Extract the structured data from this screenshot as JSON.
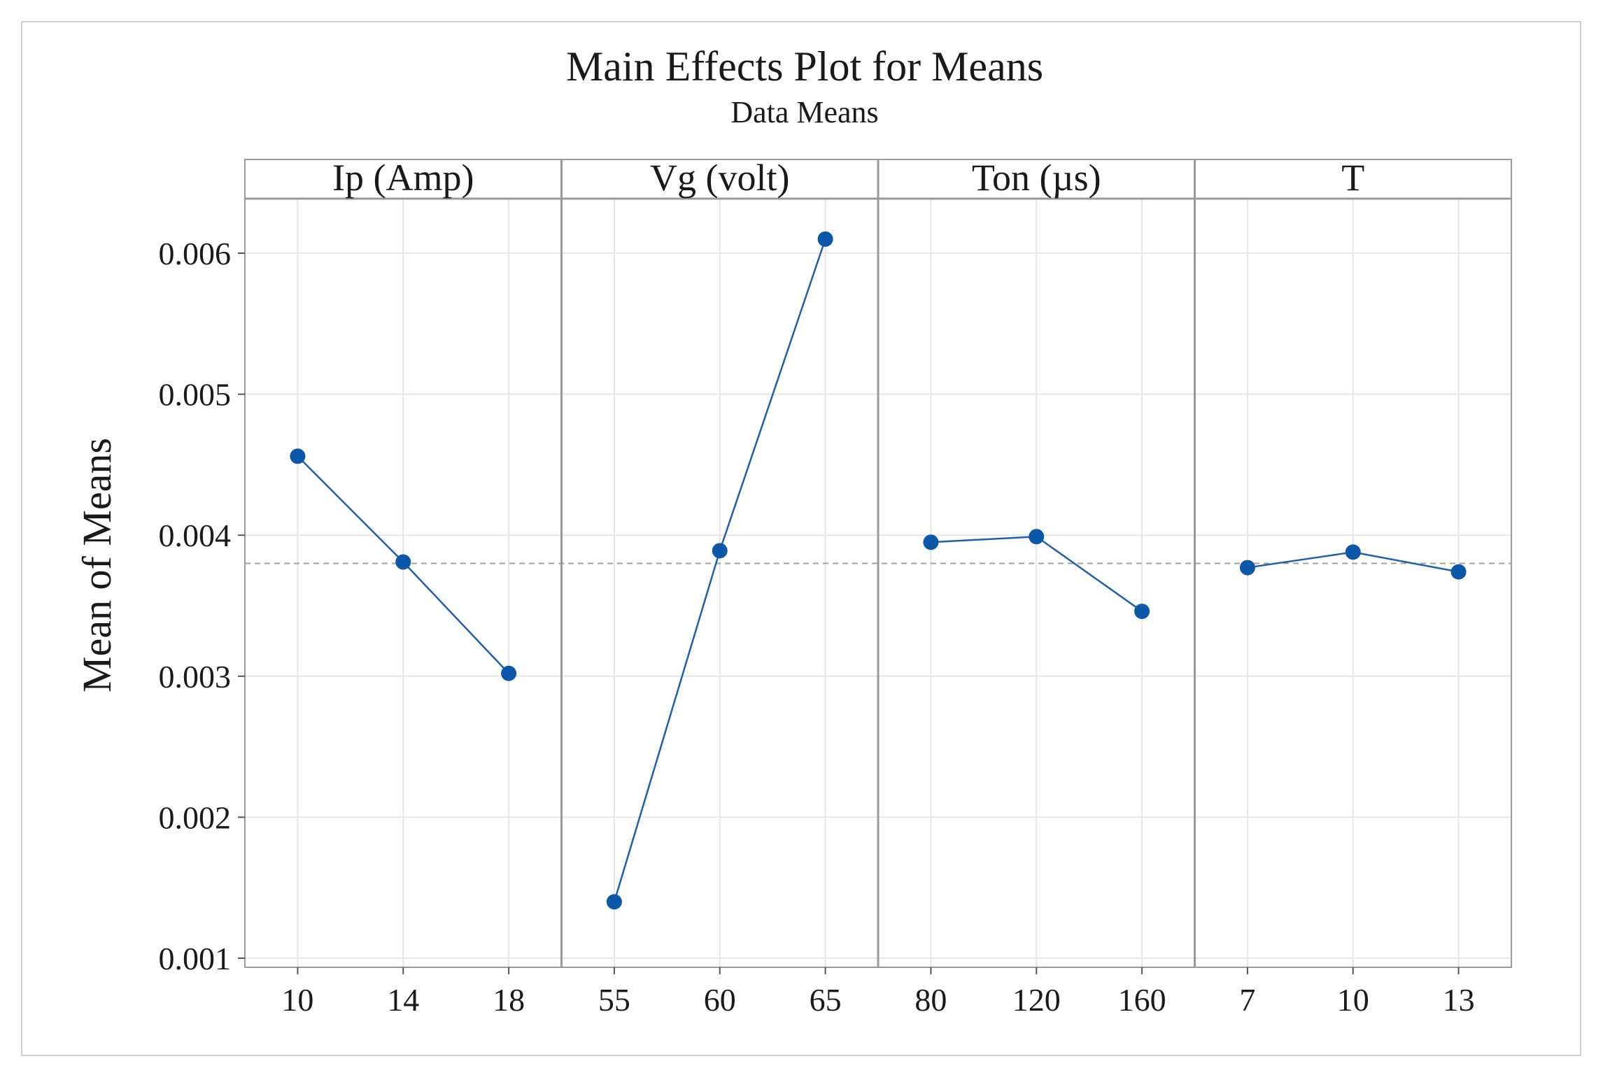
{
  "chart_data": {
    "type": "line",
    "title": "Main Effects Plot for Means",
    "subtitle": "Data Means",
    "ylabel": "Mean of Means",
    "xlabel": "",
    "ylim": [
      0.001,
      0.0064
    ],
    "yticks": [
      0.001,
      0.002,
      0.003,
      0.004,
      0.005,
      0.006
    ],
    "ytick_labels": [
      "0.001",
      "0.002",
      "0.003",
      "0.004",
      "0.005",
      "0.006"
    ],
    "reference_mean": 0.0038,
    "grid": true,
    "colors": {
      "series": "#1f5fad",
      "marker": "#0b57a8",
      "reference": "#a0a0a0",
      "grid": "#e6e6e6",
      "panel_border": "#9a9a9a"
    },
    "panels": [
      {
        "factor": "Ip (Amp)",
        "levels": [
          "10",
          "14",
          "18"
        ],
        "values": [
          0.00456,
          0.00381,
          0.00302
        ]
      },
      {
        "factor": "Vg (volt)",
        "levels": [
          "55",
          "60",
          "65"
        ],
        "values": [
          0.0014,
          0.00389,
          0.0061
        ]
      },
      {
        "factor": "Ton (µs)",
        "levels": [
          "80",
          "120",
          "160"
        ],
        "values": [
          0.00395,
          0.00399,
          0.00346
        ]
      },
      {
        "factor": "T",
        "levels": [
          "7",
          "10",
          "13"
        ],
        "values": [
          0.00377,
          0.00388,
          0.00374
        ]
      }
    ]
  }
}
